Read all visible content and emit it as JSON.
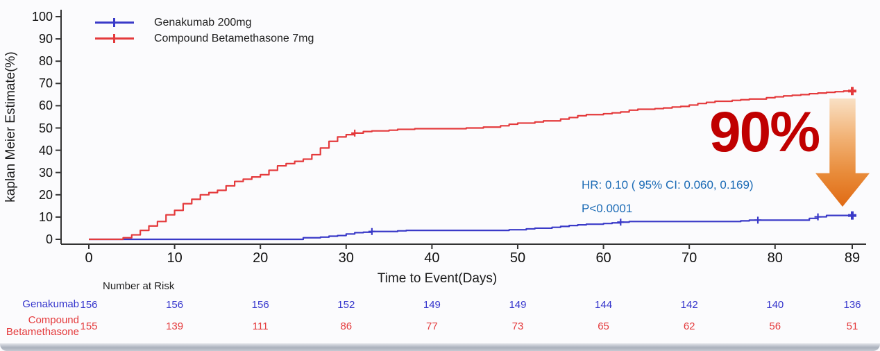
{
  "chart_data": {
    "type": "line",
    "subtype": "kaplan-meier-step",
    "title": "",
    "xlabel": "Time to Event(Days)",
    "ylabel": "kaplan Meier Estimate(%)",
    "xlim": [
      0,
      89
    ],
    "ylim": [
      0,
      100
    ],
    "x_ticks": [
      0,
      10,
      20,
      30,
      40,
      50,
      60,
      70,
      80,
      89
    ],
    "y_ticks": [
      0,
      10,
      20,
      30,
      40,
      50,
      60,
      70,
      80,
      90,
      100
    ],
    "grid": false,
    "legend_position": "top-left",
    "axis_color": "#333333",
    "series": [
      {
        "name": "Genakumab 200mg",
        "color": "#3a3ac8",
        "steps": [
          [
            0,
            0
          ],
          [
            25,
            0.7
          ],
          [
            27,
            1
          ],
          [
            28,
            1.4
          ],
          [
            29,
            1.7
          ],
          [
            30,
            2.4
          ],
          [
            31,
            3
          ],
          [
            32,
            3.2
          ],
          [
            33,
            3.5
          ],
          [
            36,
            3.8
          ],
          [
            37,
            4
          ],
          [
            49,
            4.3
          ],
          [
            51,
            4.7
          ],
          [
            52,
            5
          ],
          [
            54,
            5.4
          ],
          [
            55,
            5.8
          ],
          [
            56,
            6.2
          ],
          [
            57,
            6.5
          ],
          [
            58,
            6.8
          ],
          [
            60,
            7.1
          ],
          [
            61,
            7.4
          ],
          [
            62,
            7.7
          ],
          [
            63,
            8
          ],
          [
            76,
            8.3
          ],
          [
            77,
            8.6
          ],
          [
            84,
            9.4
          ],
          [
            85,
            10.1
          ],
          [
            86,
            10.7
          ],
          [
            89,
            10.7
          ]
        ],
        "censor_markers": [
          [
            33,
            3.5
          ],
          [
            62,
            7.7
          ],
          [
            78,
            8.6
          ],
          [
            85,
            10.1
          ]
        ],
        "end_marker": [
          89,
          10.7
        ]
      },
      {
        "name": "Compound Betamethasone 7mg",
        "color": "#e43a3c",
        "steps": [
          [
            0,
            0
          ],
          [
            4,
            0.7
          ],
          [
            5,
            2
          ],
          [
            6,
            4
          ],
          [
            7,
            6
          ],
          [
            8,
            8
          ],
          [
            9,
            11
          ],
          [
            10,
            13
          ],
          [
            11,
            16
          ],
          [
            12,
            18
          ],
          [
            13,
            20
          ],
          [
            14,
            21
          ],
          [
            15,
            22
          ],
          [
            16,
            24
          ],
          [
            17,
            26
          ],
          [
            18,
            27
          ],
          [
            19,
            28
          ],
          [
            20,
            29
          ],
          [
            21,
            31
          ],
          [
            22,
            33
          ],
          [
            23,
            34
          ],
          [
            24,
            35
          ],
          [
            25,
            36
          ],
          [
            26,
            38
          ],
          [
            27,
            41
          ],
          [
            28,
            44
          ],
          [
            29,
            46
          ],
          [
            30,
            47
          ],
          [
            31,
            47.7
          ],
          [
            32,
            48.4
          ],
          [
            33,
            48.7
          ],
          [
            35,
            49
          ],
          [
            36,
            49.4
          ],
          [
            38,
            49.7
          ],
          [
            44,
            50
          ],
          [
            46,
            50.4
          ],
          [
            48,
            51
          ],
          [
            49,
            51.7
          ],
          [
            50,
            52.2
          ],
          [
            52,
            52.7
          ],
          [
            53,
            53.2
          ],
          [
            55,
            54
          ],
          [
            56,
            54.7
          ],
          [
            57,
            55.5
          ],
          [
            58,
            56
          ],
          [
            60,
            56.4
          ],
          [
            61,
            56.8
          ],
          [
            62,
            57.2
          ],
          [
            63,
            58
          ],
          [
            64,
            58.4
          ],
          [
            66,
            58.7
          ],
          [
            67,
            59
          ],
          [
            68,
            59.4
          ],
          [
            69,
            59.7
          ],
          [
            70,
            60.3
          ],
          [
            71,
            61
          ],
          [
            72,
            61.5
          ],
          [
            73,
            62
          ],
          [
            75,
            62.4
          ],
          [
            76,
            62.7
          ],
          [
            77,
            63
          ],
          [
            79,
            63.6
          ],
          [
            80,
            64
          ],
          [
            81,
            64.4
          ],
          [
            82,
            64.7
          ],
          [
            83,
            65
          ],
          [
            84,
            65.4
          ],
          [
            85,
            65.7
          ],
          [
            86,
            66
          ],
          [
            87,
            66.3
          ],
          [
            88,
            66.6
          ],
          [
            89,
            66.6
          ]
        ],
        "censor_markers": [
          [
            31,
            47.7
          ]
        ],
        "end_marker": [
          89,
          66.6
        ]
      }
    ],
    "annotations": {
      "hr_line": "HR:  0.10  ( 95% CI:  0.060, 0.169)",
      "p_line": "P<0.0001",
      "annotation_color": "#1a6ab5",
      "reduction_label": "90%",
      "reduction_color": "#c00000"
    }
  },
  "risk_table": {
    "header": "Number at Risk",
    "rows": [
      {
        "label": "Genakumab",
        "label_lines": [
          "Genakumab"
        ],
        "color": "#3535cc",
        "values": [
          "156",
          "156",
          "156",
          "152",
          "149",
          "149",
          "144",
          "142",
          "140",
          "136"
        ]
      },
      {
        "label": "Compound Betamethasone",
        "label_lines": [
          "Compound",
          "Betamethasone"
        ],
        "color": "#e43a3c",
        "values": [
          "155",
          "139",
          "111",
          "86",
          "77",
          "73",
          "65",
          "62",
          "56",
          "51"
        ]
      }
    ]
  }
}
